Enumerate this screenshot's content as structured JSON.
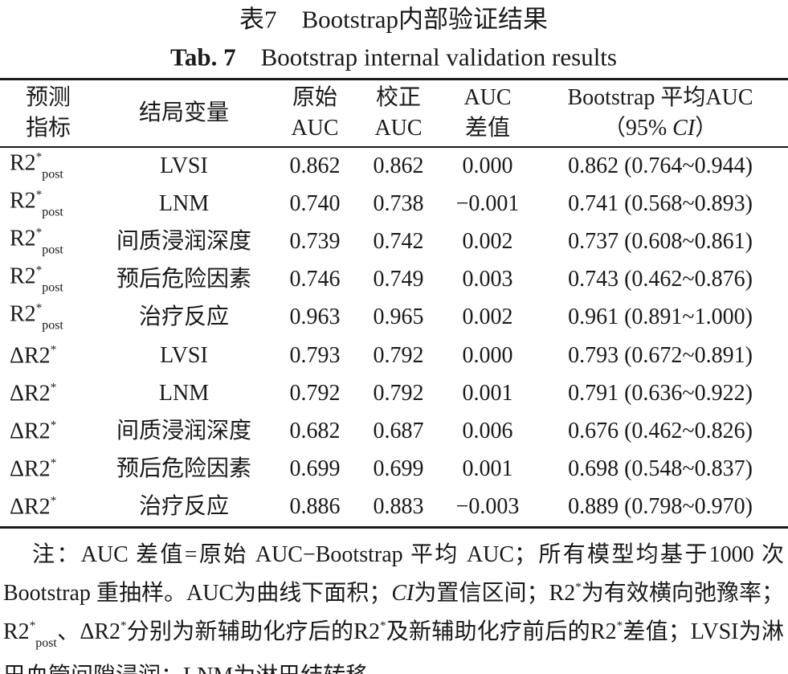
{
  "title": {
    "cn": "表7　Bootstrap内部验证结果",
    "en_label": "Tab. 7",
    "en": "Bootstrap internal validation results"
  },
  "table": {
    "header": [
      [
        [
          "预测"
        ],
        [
          "指标"
        ]
      ],
      [
        [
          "结局变量"
        ]
      ],
      [
        [
          "原始"
        ],
        [
          "AUC"
        ]
      ],
      [
        [
          "校正"
        ],
        [
          "AUC"
        ]
      ],
      [
        [
          "AUC"
        ],
        [
          "差值"
        ]
      ],
      [
        [
          "Bootstrap 平均AUC"
        ],
        [
          "（95% ",
          {
            "text": "CI",
            "style": "italic"
          },
          "）"
        ]
      ]
    ],
    "rows": [
      [
        [
          {
            "text": "R2"
          },
          {
            "text": "*",
            "style": "sup"
          },
          {
            "text": "post",
            "style": "sub"
          }
        ],
        "LVSI",
        "0.862",
        "0.862",
        "0.000",
        "0.862 (0.764~0.944)"
      ],
      [
        [
          {
            "text": "R2"
          },
          {
            "text": "*",
            "style": "sup"
          },
          {
            "text": "post",
            "style": "sub"
          }
        ],
        "LNM",
        "0.740",
        "0.738",
        "−0.001",
        "0.741 (0.568~0.893)"
      ],
      [
        [
          {
            "text": "R2"
          },
          {
            "text": "*",
            "style": "sup"
          },
          {
            "text": "post",
            "style": "sub"
          }
        ],
        "间质浸润深度",
        "0.739",
        "0.742",
        "0.002",
        "0.737 (0.608~0.861)"
      ],
      [
        [
          {
            "text": "R2"
          },
          {
            "text": "*",
            "style": "sup"
          },
          {
            "text": "post",
            "style": "sub"
          }
        ],
        "预后危险因素",
        "0.746",
        "0.749",
        "0.003",
        "0.743 (0.462~0.876)"
      ],
      [
        [
          {
            "text": "R2"
          },
          {
            "text": "*",
            "style": "sup"
          },
          {
            "text": "post",
            "style": "sub"
          }
        ],
        "治疗反应",
        "0.963",
        "0.965",
        "0.002",
        "0.961 (0.891~1.000)"
      ],
      [
        [
          {
            "text": "ΔR2"
          },
          {
            "text": "*",
            "style": "sup"
          }
        ],
        "LVSI",
        "0.793",
        "0.792",
        "0.000",
        "0.793 (0.672~0.891)"
      ],
      [
        [
          {
            "text": "ΔR2"
          },
          {
            "text": "*",
            "style": "sup"
          }
        ],
        "LNM",
        "0.792",
        "0.792",
        "0.001",
        "0.791 (0.636~0.922)"
      ],
      [
        [
          {
            "text": "ΔR2"
          },
          {
            "text": "*",
            "style": "sup"
          }
        ],
        "间质浸润深度",
        "0.682",
        "0.687",
        "0.006",
        "0.676 (0.462~0.826)"
      ],
      [
        [
          {
            "text": "ΔR2"
          },
          {
            "text": "*",
            "style": "sup"
          }
        ],
        "预后危险因素",
        "0.699",
        "0.699",
        "0.001",
        "0.698 (0.548~0.837)"
      ],
      [
        [
          {
            "text": "ΔR2"
          },
          {
            "text": "*",
            "style": "sup"
          }
        ],
        "治疗反应",
        "0.886",
        "0.883",
        "−0.003",
        "0.889 (0.798~0.970)"
      ]
    ]
  },
  "note": [
    "注：AUC 差值=原始 AUC−Bootstrap 平均 AUC；所有模型均基于1000 次Bootstrap 重抽样。AUC为曲线下面积；",
    {
      "text": "CI",
      "style": "italic"
    },
    "为置信区间；R2",
    {
      "text": "*",
      "style": "sup"
    },
    "为有效横向弛豫率；R2",
    {
      "text": "*",
      "style": "sup"
    },
    {
      "text": "post",
      "style": "sub"
    },
    "、ΔR2",
    {
      "text": "*",
      "style": "sup"
    },
    "分别为新辅助化疗后的R2",
    {
      "text": "*",
      "style": "sup"
    },
    "及新辅助化疗前后的R2",
    {
      "text": "*",
      "style": "sup"
    },
    "差值；LVSI为淋巴血管间隙浸润；LNM为淋巴结转移。"
  ]
}
